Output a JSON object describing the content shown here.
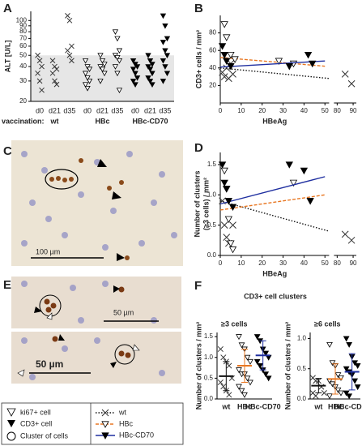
{
  "figure": {
    "panel_labels": [
      "A",
      "B",
      "C",
      "D",
      "E",
      "F"
    ],
    "scale_bars": [
      "100 µm",
      "50 µm",
      "50 µm"
    ],
    "F_title": "CD3+ cell clusters",
    "legend_symbols": [
      "ki67+ cell",
      "CD3+ cell",
      "Cluster of cells"
    ]
  },
  "chart_data": [
    {
      "type": "strip",
      "ylabel": "ALT [U/L]",
      "xlabel": "vaccination:",
      "yscale": "log",
      "ylim": [
        20,
        120
      ],
      "yticks": [
        20,
        30,
        40,
        50,
        60,
        70,
        80,
        90,
        100
      ],
      "shaded_range": [
        20,
        50
      ],
      "categories": [
        "d0",
        "d21",
        "d35"
      ],
      "series": [
        {
          "name": "wt",
          "marker": "x",
          "color": "#333333",
          "values": [
            [
              50,
              45,
              40,
              35,
              30,
              25
            ],
            [
              45,
              40,
              38,
              35,
              30,
              28
            ],
            [
              110,
              100,
              60,
              55,
              50,
              45
            ]
          ]
        },
        {
          "name": "HBc",
          "marker": "tri-open",
          "color": "#333333",
          "values": [
            [
              45,
              40,
              38,
              35,
              32,
              30,
              28,
              26
            ],
            [
              50,
              45,
              42,
              40,
              38,
              35,
              30
            ],
            [
              80,
              70,
              55,
              50,
              48,
              45,
              40,
              35,
              25
            ]
          ]
        },
        {
          "name": "HBc-CD70",
          "marker": "tri-filled",
          "color": "#111111",
          "values": [
            [
              45,
              42,
              40,
              38,
              35,
              32,
              30,
              28
            ],
            [
              50,
              45,
              42,
              40,
              38,
              35,
              32,
              30,
              28
            ],
            [
              110,
              90,
              70,
              65,
              55,
              50,
              45,
              40,
              35,
              30
            ]
          ]
        }
      ]
    },
    {
      "type": "scatter",
      "ylabel": [
        "CD3+ cells / mm²"
      ],
      "xlabel": "HBeAg",
      "xlim": [
        0,
        92
      ],
      "xbreak": [
        52,
        78
      ],
      "xticks": [
        0,
        10,
        20,
        30,
        40,
        50,
        80,
        90
      ],
      "ylim": [
        0,
        100
      ],
      "yticks": [
        20,
        40,
        60,
        80
      ],
      "series": [
        {
          "name": "wt",
          "marker": "x",
          "color": "#111111",
          "line_style": "dotted",
          "x": [
            1,
            2,
            3,
            4,
            5,
            6,
            85,
            89
          ],
          "y": [
            35,
            30,
            40,
            28,
            45,
            33,
            33,
            22
          ],
          "trend": {
            "x": [
              0,
              52
            ],
            "y": [
              40,
              28
            ]
          }
        },
        {
          "name": "HBc",
          "marker": "tri-open",
          "color": "#e87722",
          "line_style": "dashed",
          "x": [
            2,
            3,
            5,
            7,
            28,
            35
          ],
          "y": [
            90,
            75,
            55,
            50,
            48,
            45
          ],
          "trend": {
            "x": [
              0,
              50
            ],
            "y": [
              52,
              42
            ]
          }
        },
        {
          "name": "HBc-CD70",
          "marker": "tri-filled",
          "color": "#1f2fa0",
          "line_style": "solid",
          "x": [
            1,
            2,
            3,
            5,
            33,
            42,
            44
          ],
          "y": [
            65,
            55,
            48,
            42,
            42,
            55,
            45
          ],
          "trend": {
            "x": [
              0,
              50
            ],
            "y": [
              41,
              48
            ]
          }
        }
      ]
    },
    {
      "type": "scatter",
      "ylabel": [
        "Number of clusters",
        "(≥3 cells) / mm²"
      ],
      "xlabel": "HBeAg",
      "xlim": [
        0,
        92
      ],
      "xbreak": [
        52,
        78
      ],
      "xticks": [
        0,
        10,
        20,
        30,
        40,
        50,
        80,
        90
      ],
      "ylim": [
        0,
        1.7
      ],
      "yticks": [
        {
          "value": 0,
          "label": "0.0"
        },
        0.5,
        {
          "value": 1,
          "label": "1.0"
        },
        1.5
      ],
      "series": [
        {
          "name": "wt",
          "marker": "x",
          "color": "#111111",
          "line_style": "dotted",
          "x": [
            1,
            2,
            3,
            4,
            6,
            85,
            89
          ],
          "y": [
            0.9,
            0.5,
            0.3,
            0.2,
            0.5,
            0.35,
            0.25
          ],
          "trend": {
            "x": [
              0,
              52
            ],
            "y": [
              0.9,
              0.4
            ]
          }
        },
        {
          "name": "HBc",
          "marker": "tri-open",
          "color": "#e87722",
          "line_style": "dashed",
          "x": [
            2,
            3,
            4,
            5,
            6,
            35
          ],
          "y": [
            1.4,
            1.1,
            0.6,
            0.2,
            0.1,
            1.2
          ],
          "trend": {
            "x": [
              0,
              50
            ],
            "y": [
              0.75,
              1.0
            ]
          }
        },
        {
          "name": "HBc-CD70",
          "marker": "tri-filled",
          "color": "#1f2fa0",
          "line_style": "solid",
          "x": [
            1,
            2,
            3,
            4,
            6,
            33,
            40,
            43
          ],
          "y": [
            1.5,
            1.2,
            1.1,
            0.9,
            0.8,
            1.5,
            1.4,
            0.9
          ],
          "trend": {
            "x": [
              0,
              50
            ],
            "y": [
              0.85,
              1.3
            ]
          }
        }
      ]
    },
    {
      "type": "strip",
      "title": "≥3 cells",
      "ylabel": "Number of clusters / mm²",
      "ylim": [
        0,
        1.6
      ],
      "yticks": [
        {
          "value": 0,
          "label": "0.0"
        },
        0.5,
        {
          "value": 1,
          "label": "1.0"
        },
        1.5
      ],
      "series": [
        {
          "name": "wt",
          "marker": "x",
          "color": "#111111",
          "values": [
            1.2,
            1.0,
            0.9,
            0.8,
            0.5,
            0.4,
            0.3,
            0.2,
            0.1
          ],
          "mean": 0.55,
          "sd": 0.35
        },
        {
          "name": "HBc",
          "marker": "tri-open",
          "color": "#e87722",
          "values": [
            1.5,
            1.3,
            1.2,
            1.0,
            0.9,
            0.7,
            0.6,
            0.6,
            0.5,
            0.4,
            0.3,
            0.2,
            0.1
          ],
          "mean": 0.8,
          "sd": 0.4
        },
        {
          "name": "HBc-CD70",
          "marker": "tri-filled",
          "color": "#1f2fa0",
          "values": [
            1.5,
            1.4,
            1.2,
            1.1,
            1.0,
            0.9,
            0.8,
            0.7,
            0.6,
            0.5
          ],
          "mean": 1.05,
          "sd": 0.35
        }
      ]
    },
    {
      "type": "strip",
      "title": "≥6 cells",
      "ylabel": "Number of clusters / mm²",
      "ylim": [
        0,
        1.1
      ],
      "yticks": [
        {
          "value": 0,
          "label": "0.0"
        },
        0.5,
        {
          "value": 1,
          "label": "1.0"
        }
      ],
      "series": [
        {
          "name": "wt",
          "marker": "x",
          "color": "#111111",
          "values": [
            0.35,
            0.3,
            0.3,
            0.2,
            0.1,
            0.1,
            0.05
          ],
          "mean": 0.22,
          "sd": 0.12
        },
        {
          "name": "HBc",
          "marker": "tri-open",
          "color": "#e87722",
          "values": [
            0.9,
            0.6,
            0.55,
            0.4,
            0.35,
            0.3,
            0.25,
            0.2,
            0.15,
            0.1,
            0.05
          ],
          "mean": 0.33,
          "sd": 0.25
        },
        {
          "name": "HBc-CD70",
          "marker": "tri-filled",
          "color": "#1f2fa0",
          "values": [
            1.0,
            0.9,
            0.7,
            0.6,
            0.55,
            0.5,
            0.45,
            0.4,
            0.3,
            0.2,
            0.1,
            0.05
          ],
          "mean": 0.45,
          "sd": 0.3
        }
      ]
    }
  ]
}
